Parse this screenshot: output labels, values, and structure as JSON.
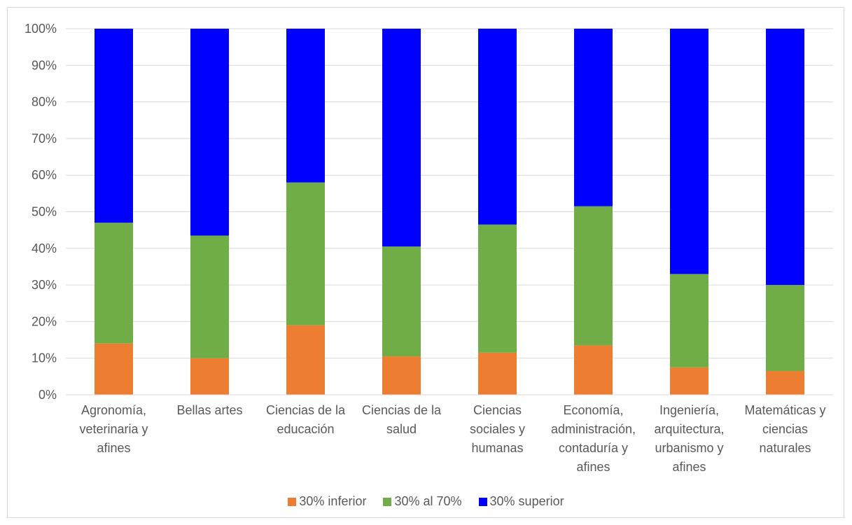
{
  "chart_data": {
    "type": "bar",
    "stacked": true,
    "percent": true,
    "categories": [
      [
        "Agronomía,",
        "veterinaria y",
        "afines"
      ],
      [
        "Bellas artes"
      ],
      [
        "Ciencias de la",
        "educación"
      ],
      [
        "Ciencias de la",
        "salud"
      ],
      [
        "Ciencias",
        "sociales y",
        "humanas"
      ],
      [
        "Economía,",
        "administración,",
        "contaduría y",
        "afines"
      ],
      [
        "Ingeniería,",
        "arquitectura,",
        "urbanismo y",
        "afines"
      ],
      [
        "Matemáticas y",
        "ciencias",
        "naturales"
      ]
    ],
    "series": [
      {
        "name": "30% inferior",
        "color": "#ed7d31",
        "values": [
          14,
          10,
          19,
          10.5,
          11.5,
          13.5,
          7.5,
          6.5
        ]
      },
      {
        "name": "30% al 70%",
        "color": "#70ad47",
        "values": [
          33,
          33.5,
          39,
          30,
          35,
          38,
          25.5,
          23.5
        ]
      },
      {
        "name": "30% superior",
        "color": "#0000ff",
        "values": [
          53,
          56.5,
          42,
          59.5,
          53.5,
          48.5,
          67,
          70
        ]
      }
    ],
    "yticks": [
      "0%",
      "10%",
      "20%",
      "30%",
      "40%",
      "50%",
      "60%",
      "70%",
      "80%",
      "90%",
      "100%"
    ],
    "ylim": [
      0,
      100
    ],
    "grid": true,
    "legend_position": "bottom",
    "title": "",
    "xlabel": "",
    "ylabel": ""
  }
}
